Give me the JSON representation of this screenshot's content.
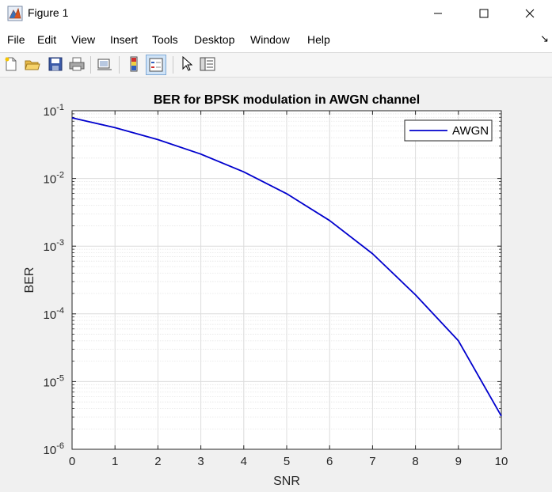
{
  "window": {
    "title": "Figure 1",
    "icon": "matlab-figure-icon"
  },
  "menu": [
    "File",
    "Edit",
    "View",
    "Insert",
    "Tools",
    "Desktop",
    "Window",
    "Help"
  ],
  "toolbar": {
    "icons": [
      "new-figure-icon",
      "open-file-icon",
      "save-icon",
      "print-icon",
      "link-plot-icon",
      "insert-colorbar-icon",
      "insert-legend-icon",
      "edit-plot-icon",
      "open-property-inspector-icon"
    ]
  },
  "chart_data": {
    "type": "line",
    "title": "BER for BPSK modulation in AWGN channel",
    "xlabel": "SNR",
    "ylabel": "BER",
    "xlim": [
      0,
      10
    ],
    "ylim": [
      1e-06,
      0.1
    ],
    "yscale": "log",
    "xticks": [
      "0",
      "1",
      "2",
      "3",
      "4",
      "5",
      "6",
      "7",
      "8",
      "9",
      "10"
    ],
    "yticks": [
      {
        "base": "10",
        "exp": "-6"
      },
      {
        "base": "10",
        "exp": "-5"
      },
      {
        "base": "10",
        "exp": "-4"
      },
      {
        "base": "10",
        "exp": "-3"
      },
      {
        "base": "10",
        "exp": "-2"
      },
      {
        "base": "10",
        "exp": "-1"
      }
    ],
    "grid": true,
    "minor_grid": true,
    "legend_position": "top-right",
    "x": [
      0,
      1,
      2,
      3,
      4,
      5,
      6,
      7,
      8,
      9,
      10
    ],
    "series": [
      {
        "name": "AWGN",
        "color": "#0000cd",
        "values": [
          0.0786,
          0.0563,
          0.0375,
          0.0229,
          0.0125,
          0.00595,
          0.00239,
          0.000773,
          0.000191,
          4.01e-05,
          3.1e-06
        ]
      }
    ]
  }
}
